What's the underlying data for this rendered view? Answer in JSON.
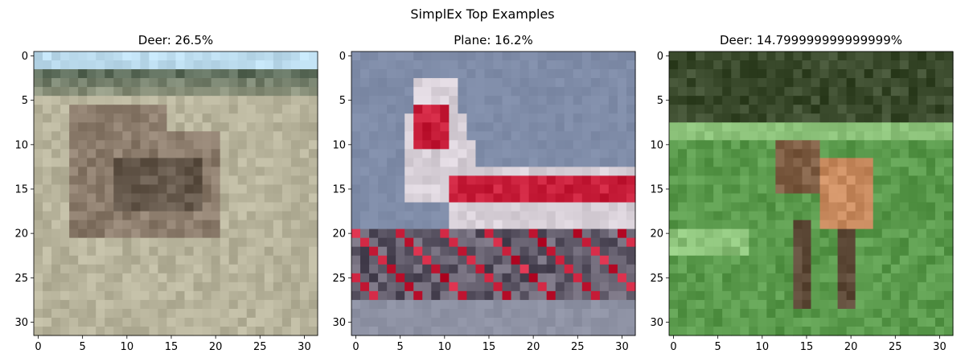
{
  "figure": {
    "suptitle": "SimplEx Top Examples"
  },
  "panels": [
    {
      "title": "Deer: 26.5%",
      "image_icon": "blurry-deer-photo-icon",
      "palette": {
        "sky": "#bcdcee",
        "trees": "#2f4a3a",
        "ground": "#b8b49c",
        "animal": "#8c7c6c",
        "shadow": "#4a3e34"
      }
    },
    {
      "title": "Plane: 16.2%",
      "image_icon": "blurry-airplane-photo-icon",
      "palette": {
        "sky": "#7f8ca8",
        "body": "#d8d0d8",
        "stripe": "#c81e3a",
        "tarmac": "#8e92a4",
        "ground_dark": "#3a2c38"
      }
    },
    {
      "title": "Deer: 14.799999999999999%",
      "image_icon": "blurry-deer-in-grass-photo-icon",
      "palette": {
        "forest": "#3a4a2c",
        "grass": "#5a9a4c",
        "grass_light": "#8cc27a",
        "deer_body": "#c88a5e",
        "deer_dark": "#5e4a38"
      }
    }
  ],
  "axes": {
    "x_ticks": [
      "0",
      "5",
      "10",
      "15",
      "20",
      "25",
      "30"
    ],
    "y_ticks": [
      "0",
      "5",
      "10",
      "15",
      "20",
      "25",
      "30"
    ]
  }
}
